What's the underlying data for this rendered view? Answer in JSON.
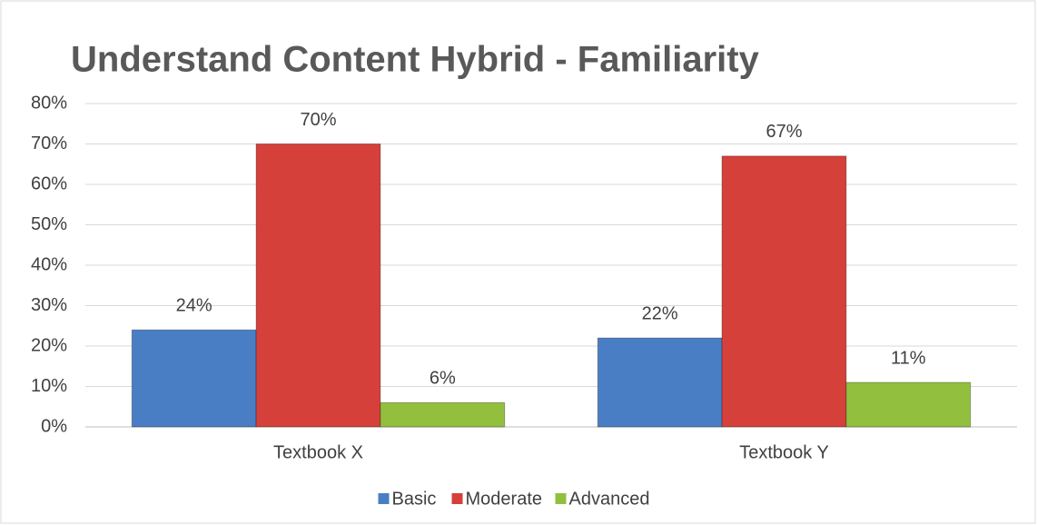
{
  "chart_data": {
    "type": "bar",
    "title": "Understand Content Hybrid - Familiarity",
    "categories": [
      "Textbook X",
      "Textbook Y"
    ],
    "series": [
      {
        "name": "Basic",
        "color": "#4a7ec4",
        "values": [
          24,
          22
        ],
        "value_labels": [
          "24%",
          "22%"
        ]
      },
      {
        "name": "Moderate",
        "color": "#d5403b",
        "values": [
          70,
          67
        ],
        "value_labels": [
          "70%",
          "67%"
        ]
      },
      {
        "name": "Advanced",
        "color": "#92c03e",
        "values": [
          6,
          11
        ],
        "value_labels": [
          "6%",
          "11%"
        ]
      }
    ],
    "ylim": [
      0,
      80
    ],
    "yticks": [
      {
        "value": 0,
        "label": "0%"
      },
      {
        "value": 10,
        "label": "10%"
      },
      {
        "value": 20,
        "label": "20%"
      },
      {
        "value": 30,
        "label": "30%"
      },
      {
        "value": 40,
        "label": "40%"
      },
      {
        "value": 50,
        "label": "50%"
      },
      {
        "value": 60,
        "label": "60%"
      },
      {
        "value": 70,
        "label": "70%"
      },
      {
        "value": 80,
        "label": "80%"
      }
    ],
    "grid": true,
    "legend": "bottom"
  }
}
